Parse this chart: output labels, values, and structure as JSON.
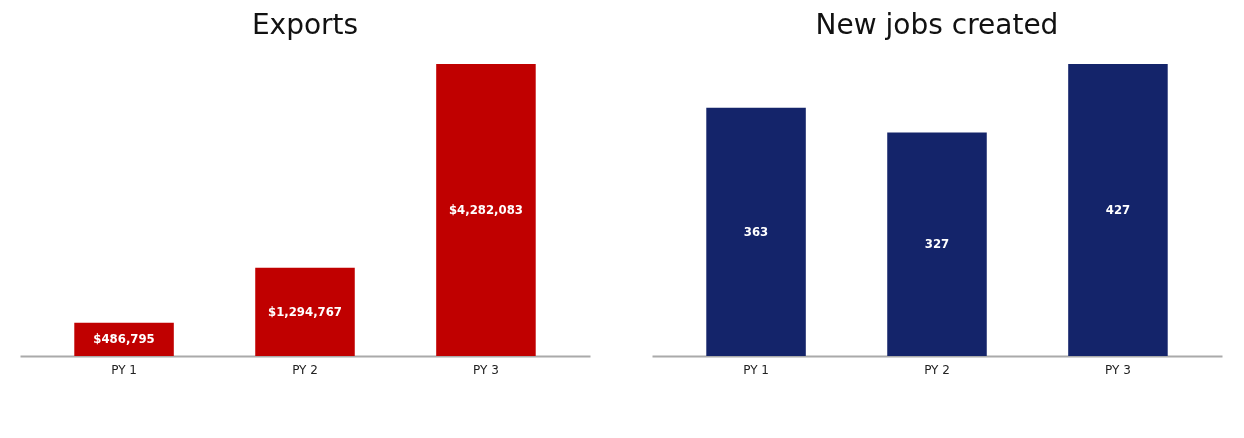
{
  "chart_data": [
    {
      "type": "bar",
      "title": "Exports",
      "categories": [
        "PY 1",
        "PY 2",
        "PY 3"
      ],
      "values": [
        486795,
        1294767,
        4282083
      ],
      "color": "#c00000",
      "value_labels": [
        "$486,795",
        "$1,294,767",
        "$4,282,083"
      ]
    },
    {
      "type": "bar",
      "title": "New jobs created",
      "categories": [
        "PY 1",
        "PY 2",
        "PY 3"
      ],
      "values": [
        363,
        327,
        427
      ],
      "color": "#14246a",
      "value_labels": [
        "363",
        "327",
        "427"
      ]
    }
  ]
}
